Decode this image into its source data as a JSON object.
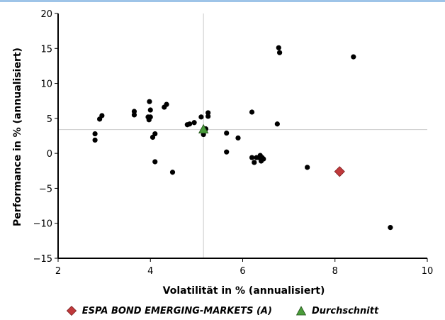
{
  "chart_data": {
    "type": "scatter",
    "xlabel": "Volatilität in % (annualisiert)",
    "ylabel": "Performance in % (annualisiert)",
    "xlim": [
      2,
      10
    ],
    "ylim": [
      -15,
      20
    ],
    "xticks": [
      "2",
      "4",
      "6",
      "8",
      "10"
    ],
    "yticks": [
      "20",
      "15",
      "10",
      "5",
      "0",
      "−5",
      "−10",
      "−15"
    ],
    "crosshair": {
      "x": 5.15,
      "y": 3.4
    },
    "series": [
      {
        "name": "",
        "marker": "circle",
        "color": "#000000",
        "x": [
          2.8,
          2.8,
          2.9,
          2.95,
          3.65,
          3.65,
          3.95,
          3.97,
          4.0,
          3.98,
          4.0,
          4.05,
          4.1,
          4.1,
          4.3,
          4.35,
          4.48,
          4.8,
          4.85,
          4.95,
          5.1,
          5.15,
          5.25,
          5.25,
          5.2,
          5.65,
          5.65,
          5.9,
          6.2,
          6.2,
          6.25,
          6.3,
          6.35,
          6.38,
          6.4,
          6.42,
          6.45,
          6.75,
          6.78,
          6.8,
          7.4,
          8.4,
          9.2
        ],
        "y": [
          1.9,
          2.8,
          4.9,
          5.4,
          5.5,
          6.0,
          5.2,
          4.8,
          6.2,
          7.4,
          5.2,
          2.3,
          2.8,
          -1.2,
          6.6,
          7.0,
          -2.7,
          4.1,
          4.2,
          4.4,
          5.2,
          2.7,
          5.3,
          5.8,
          3.5,
          2.9,
          0.2,
          2.2,
          5.9,
          -0.6,
          -1.3,
          -0.6,
          -0.6,
          -0.3,
          -1.1,
          -0.6,
          -0.8,
          4.2,
          15.1,
          14.4,
          -2.0,
          13.8,
          -10.6
        ]
      },
      {
        "name": "ESPA BOND EMERGING-MARKETS (A)",
        "marker": "diamond",
        "color": "#c0393b",
        "x": [
          8.1
        ],
        "y": [
          -2.6
        ]
      },
      {
        "name": "Durchschnitt",
        "marker": "triangle",
        "color": "#4a9c3a",
        "x": [
          5.15
        ],
        "y": [
          3.4
        ]
      }
    ],
    "legend_position": "bottom-center",
    "grid": false
  }
}
